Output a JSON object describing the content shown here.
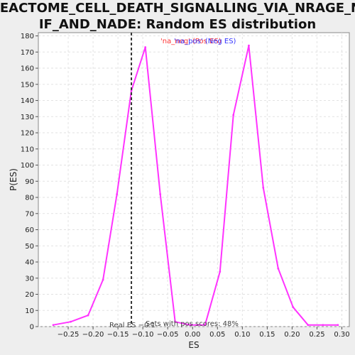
{
  "chart_data": {
    "type": "line",
    "title_line1": "REACTOME_CELL_DEATH_SIGNALLING_VIA_NRAGE_NR",
    "title_line2": "IF_AND_NADE: Random ES distribution",
    "xlabel": "ES",
    "ylabel": "P(ES)",
    "xlim": [
      -0.31,
      0.315
    ],
    "ylim": [
      0,
      182
    ],
    "xticks": [
      -0.25,
      -0.2,
      -0.15,
      -0.1,
      -0.05,
      0.0,
      0.05,
      0.1,
      0.15,
      0.2,
      0.25,
      0.3
    ],
    "xtick_labels": [
      "−0.25",
      "−0.20",
      "−0.15",
      "−0.10",
      "−0.05",
      "0.00",
      "0.05",
      "0.10",
      "0.15",
      "0.20",
      "0.25",
      "0.30"
    ],
    "yticks": [
      0,
      10,
      20,
      30,
      40,
      50,
      60,
      70,
      80,
      90,
      100,
      110,
      120,
      130,
      140,
      150,
      160,
      170,
      180
    ],
    "grid": true,
    "series": [
      {
        "color": "#ff33ff",
        "x": [
          -0.28,
          -0.245,
          -0.21,
          -0.18,
          -0.152,
          -0.123,
          -0.095,
          -0.065,
          -0.035,
          -0.005,
          0.025,
          0.055,
          0.082,
          0.113,
          0.142,
          0.172,
          0.202,
          0.232,
          0.262,
          0.292
        ],
        "y": [
          1,
          3,
          7,
          29,
          82,
          146,
          173,
          82,
          3,
          1,
          1,
          34,
          131,
          174,
          86,
          36,
          12,
          1,
          1,
          1
        ]
      }
    ],
    "vline": {
      "x": -0.123,
      "label": "Real ES −0.1"
    },
    "legend": {
      "na_label": "'na_neg' (Pos ES)",
      "pos_label": "'na_pos' (Neg ES)",
      "na_color": "#ff3333",
      "pos_color": "#3333ff",
      "placement": "top-center"
    },
    "annotation": "Sets with pos scores: 48%"
  }
}
